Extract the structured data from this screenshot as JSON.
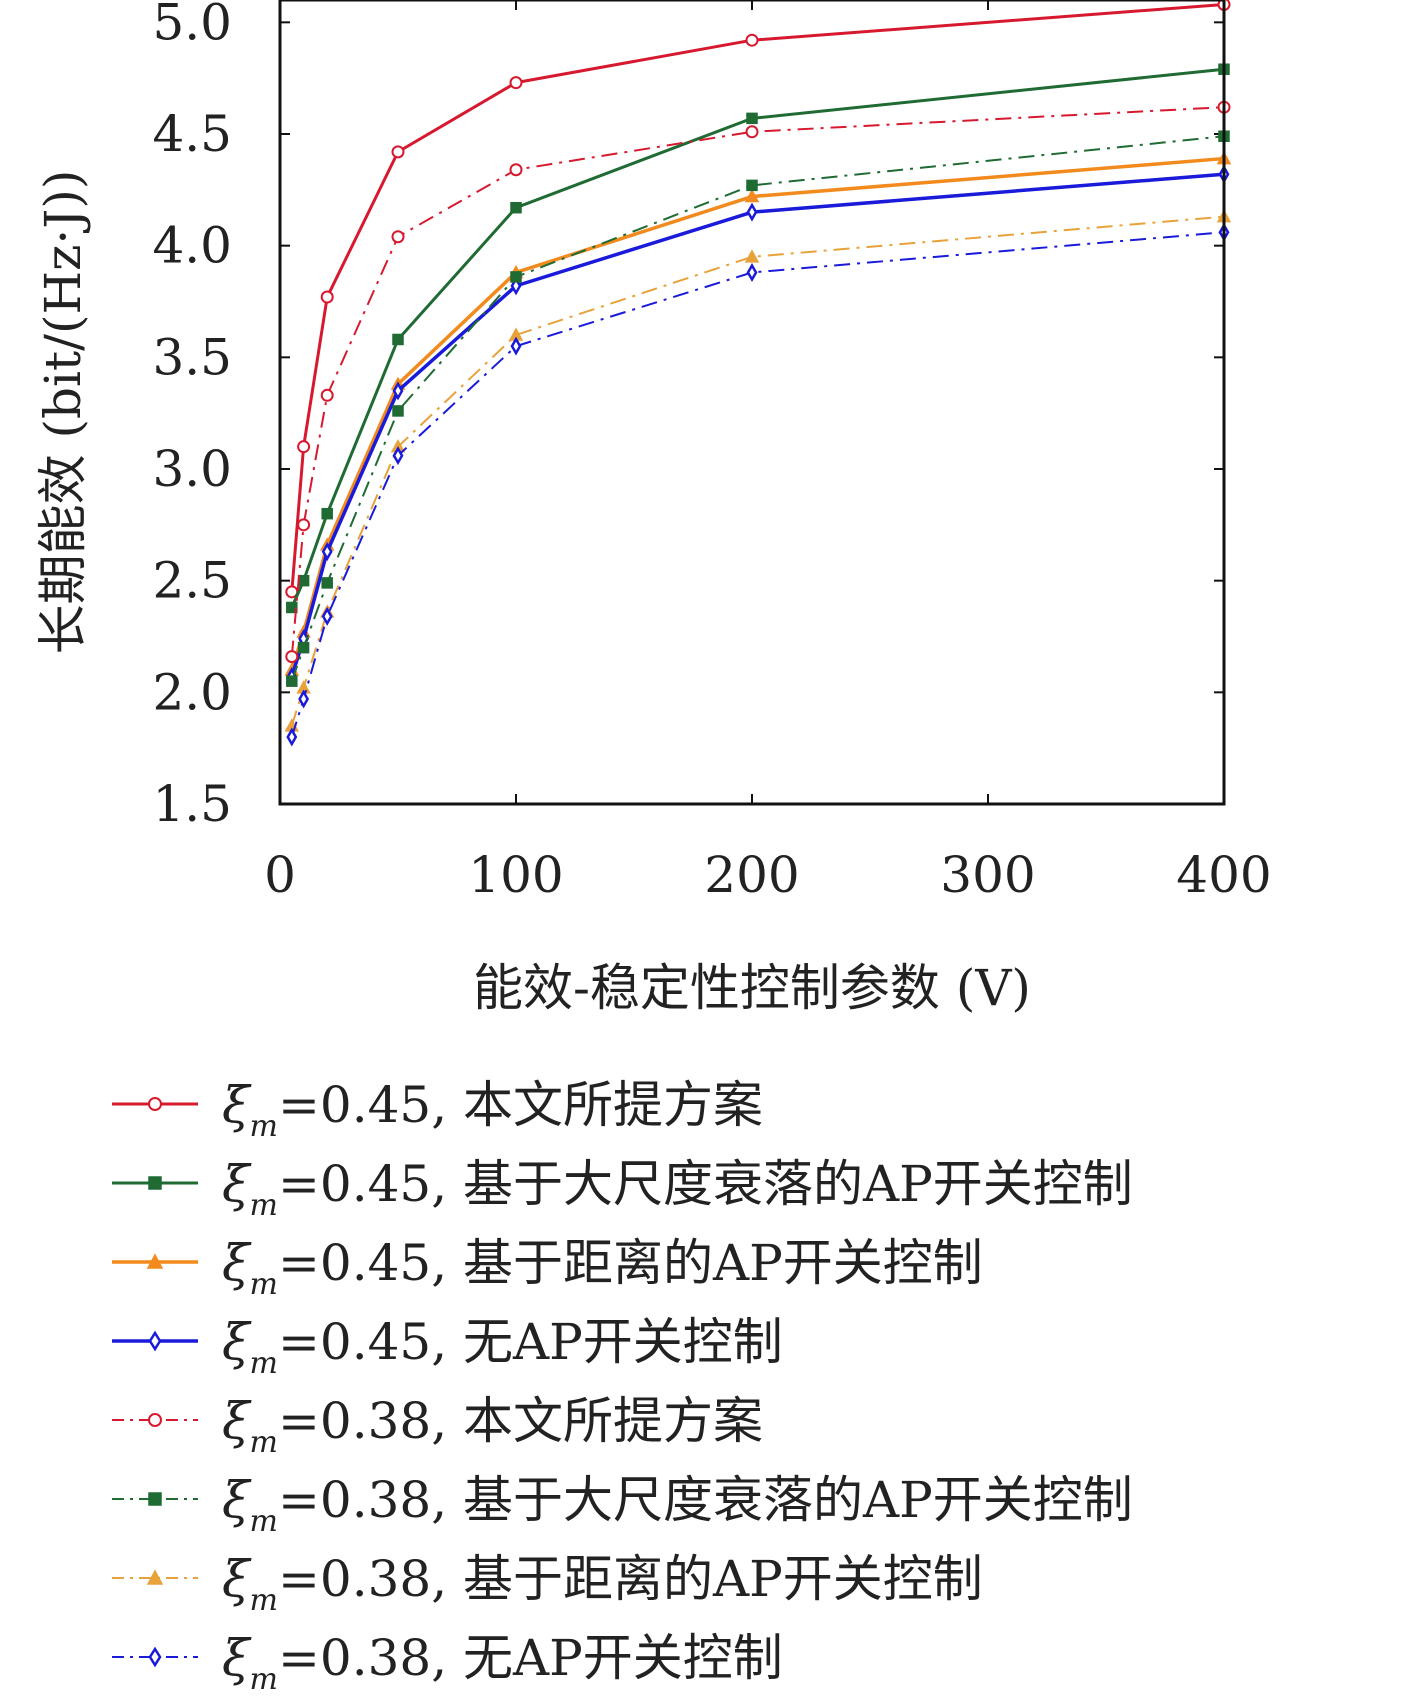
{
  "chart_data": {
    "type": "line",
    "xlabel": "能效-稳定性控制参数 (V)",
    "ylabel": "长期能效 (bit/(Hz·J))",
    "xlim": [
      0,
      400
    ],
    "ylim": [
      1.5,
      5.1
    ],
    "xticks": [
      "0",
      "100",
      "200",
      "300",
      "400"
    ],
    "yticks": [
      "1.5",
      "2.0",
      "2.5",
      "3.0",
      "3.5",
      "4.0",
      "4.5",
      "5.0"
    ],
    "legend_position": "below",
    "x": [
      5,
      10,
      20,
      50,
      100,
      200,
      400
    ],
    "series": [
      {
        "name": "ξm=0.45, 本文所提方案",
        "prefix": "=0.45, ",
        "suffix": "本文所提方案",
        "color": "#d7192f",
        "dash": "solid",
        "marker": "circle",
        "width": 3,
        "values": [
          2.45,
          3.1,
          3.77,
          4.42,
          4.73,
          4.92,
          5.08
        ]
      },
      {
        "name": "ξm=0.45, 基于大尺度衰落的AP开关控制",
        "prefix": "=0.45, ",
        "suffix": "基于大尺度衰落的AP开关控制",
        "color": "#1f6b33",
        "dash": "solid",
        "marker": "square",
        "width": 3,
        "values": [
          2.38,
          2.5,
          2.8,
          3.58,
          4.17,
          4.57,
          4.79
        ]
      },
      {
        "name": "ξm=0.45, 基于距离的AP开关控制",
        "prefix": "=0.45, ",
        "suffix": "基于距离的AP开关控制",
        "color": "#f28a1e",
        "dash": "solid",
        "marker": "triangle",
        "width": 3.5,
        "values": [
          2.1,
          2.27,
          2.66,
          3.38,
          3.88,
          4.22,
          4.39
        ]
      },
      {
        "name": "ξm=0.45, 无AP开关控制",
        "prefix": "=0.45, ",
        "suffix": "无AP开关控制",
        "color": "#1a1adb",
        "dash": "solid",
        "marker": "diamond",
        "width": 3.5,
        "values": [
          2.07,
          2.24,
          2.63,
          3.35,
          3.82,
          4.15,
          4.32
        ]
      },
      {
        "name": "ξm=0.38, 本文所提方案",
        "prefix": "=0.38, ",
        "suffix": "本文所提方案",
        "color": "#d7192f",
        "dash": "dashdot",
        "marker": "circle",
        "width": 2,
        "values": [
          2.16,
          2.75,
          3.33,
          4.04,
          4.34,
          4.51,
          4.62
        ]
      },
      {
        "name": "ξm=0.38, 基于大尺度衰落的AP开关控制",
        "prefix": "=0.38, ",
        "suffix": "基于大尺度衰落的AP开关控制",
        "color": "#1f6b33",
        "dash": "dashdot",
        "marker": "square",
        "width": 2,
        "values": [
          2.05,
          2.2,
          2.49,
          3.26,
          3.86,
          4.27,
          4.49
        ]
      },
      {
        "name": "ξm=0.38, 基于距离的AP开关控制",
        "prefix": "=0.38, ",
        "suffix": "基于距离的AP开关控制",
        "color": "#e8a23a",
        "dash": "dashdot",
        "marker": "triangle",
        "width": 2,
        "values": [
          1.85,
          2.02,
          2.36,
          3.1,
          3.6,
          3.95,
          4.13
        ]
      },
      {
        "name": "ξm=0.38, 无AP开关控制",
        "prefix": "=0.38, ",
        "suffix": "无AP开关控制",
        "color": "#1a1adb",
        "dash": "dashdot",
        "marker": "diamond",
        "width": 2,
        "values": [
          1.8,
          1.97,
          2.34,
          3.06,
          3.55,
          3.88,
          4.06
        ]
      }
    ]
  }
}
